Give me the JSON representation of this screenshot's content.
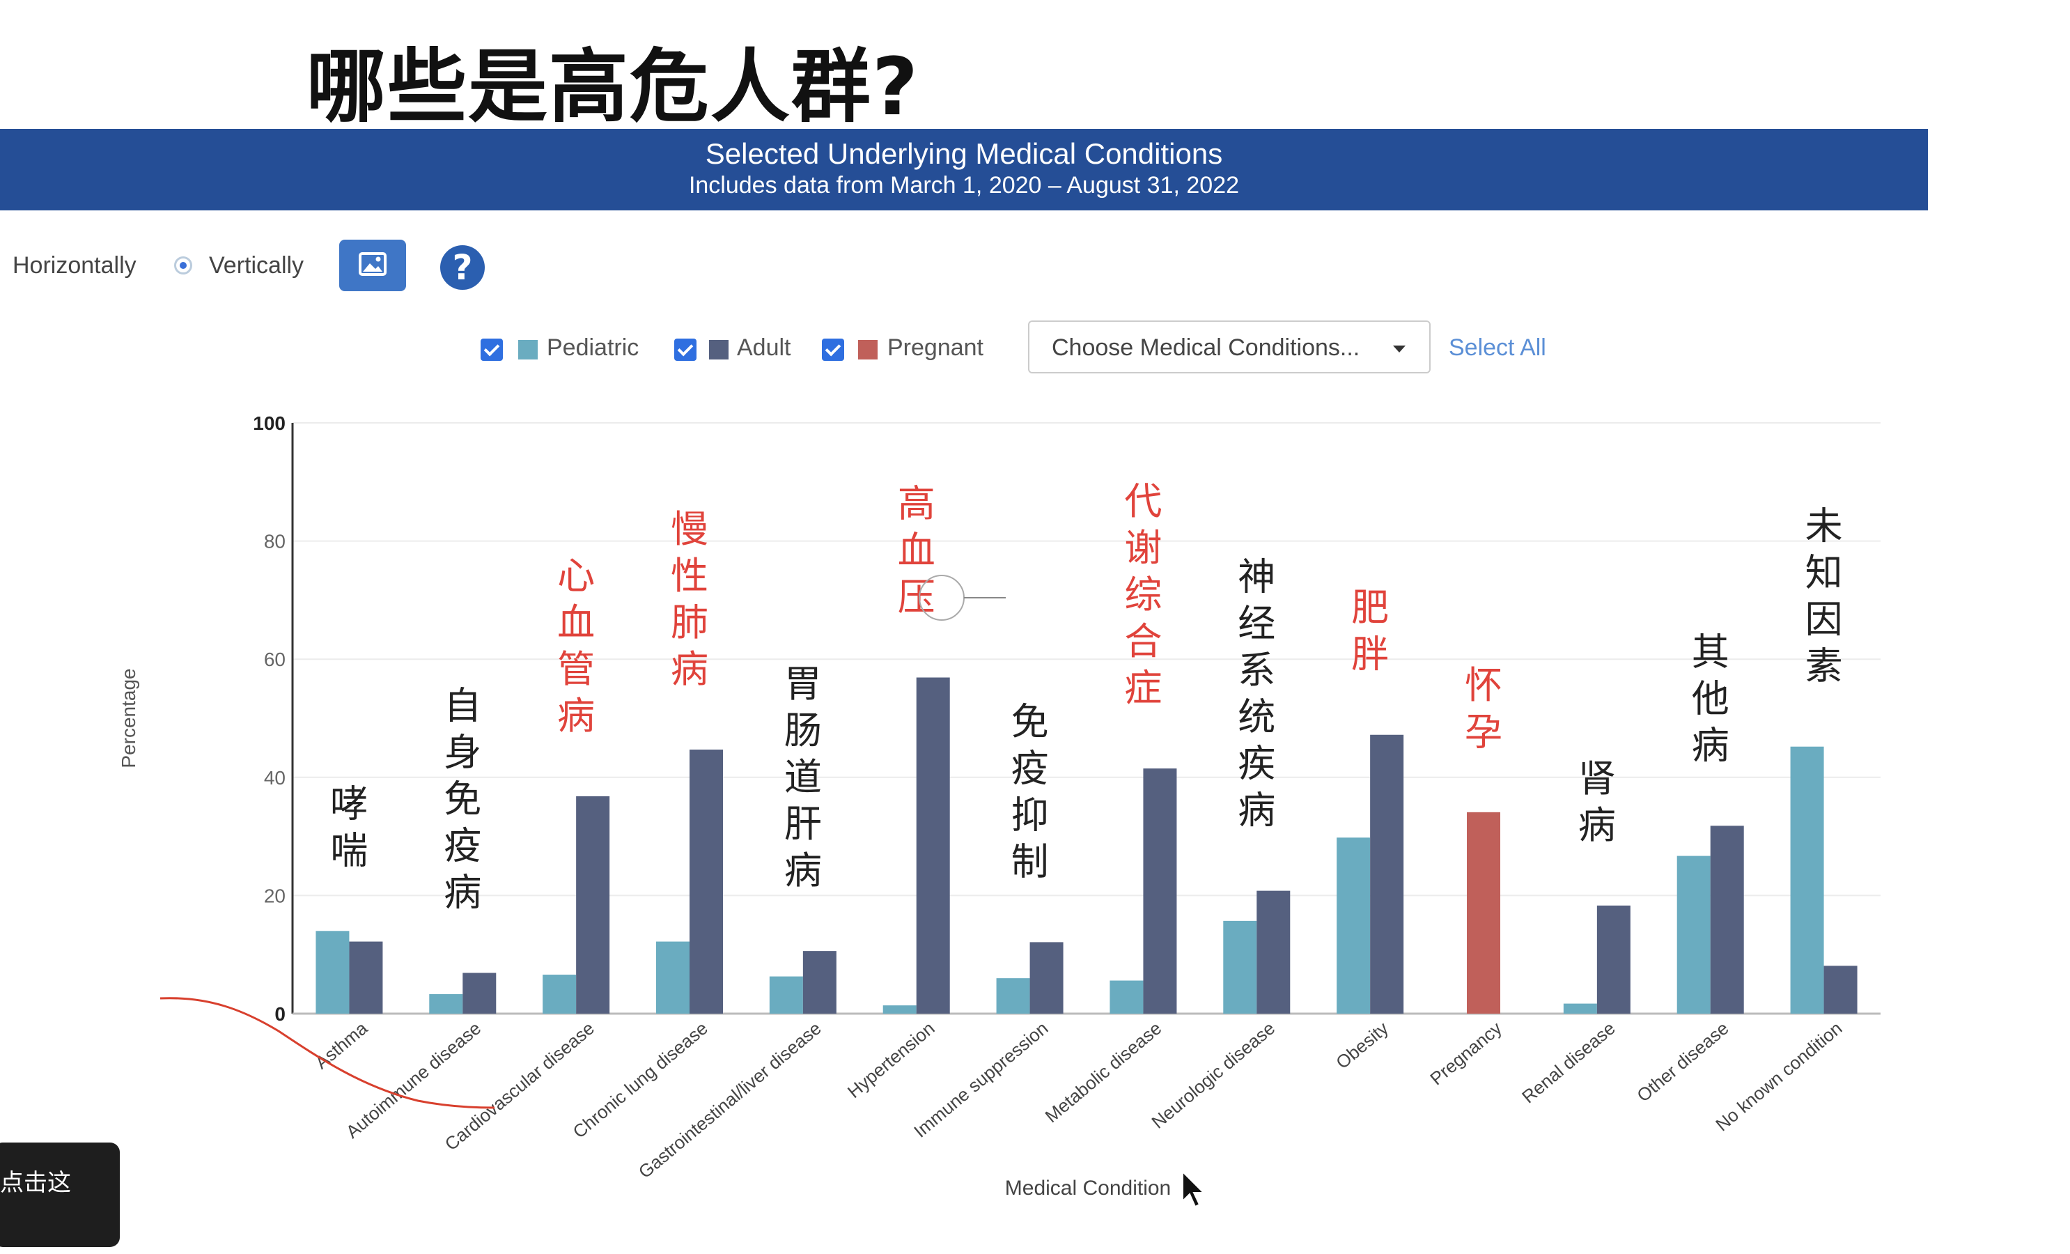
{
  "slide_title": "哪些是高危人群?",
  "banner": {
    "title": "Selected Underlying Medical Conditions",
    "subtitle": "Includes data from March 1, 2020 – August 31, 2022"
  },
  "controls": {
    "horizontal_label": "Horizontally",
    "vertical_label": "Vertically",
    "selected_orientation": "Vertically",
    "image_icon": "image-icon",
    "help_icon": "question-icon",
    "help_glyph": "?"
  },
  "legend": {
    "items": [
      {
        "label": "Pediatric",
        "color": "#6aacc0",
        "checked": true
      },
      {
        "label": "Adult",
        "color": "#55607f",
        "checked": true
      },
      {
        "label": "Pregnant",
        "color": "#c0605a",
        "checked": true
      }
    ],
    "dropdown_label": "Choose Medical Conditions...",
    "select_all_label": "Select All"
  },
  "chart_data": {
    "type": "bar",
    "xlabel": "Medical Condition",
    "ylabel": "Percentage",
    "ylim": [
      0,
      100
    ],
    "yticks": [
      0,
      20,
      40,
      60,
      80,
      100
    ],
    "grid": true,
    "categories": [
      "Asthma",
      "Autoimmune disease",
      "Cardiovascular disease",
      "Chronic lung disease",
      "Gastrointestinal/liver disease",
      "Hypertension",
      "Immune suppression",
      "Metabolic disease",
      "Neurologic disease",
      "Obesity",
      "Pregnancy",
      "Renal disease",
      "Other disease",
      "No known condition"
    ],
    "series": [
      {
        "name": "Pediatric",
        "color": "#6aacc0",
        "values": [
          14,
          3.3,
          6.6,
          12.2,
          6.3,
          1.4,
          6,
          5.6,
          15.7,
          29.8,
          null,
          1.7,
          26.7,
          45.2
        ]
      },
      {
        "name": "Adult",
        "color": "#55607f",
        "values": [
          12.2,
          6.9,
          36.8,
          44.7,
          10.6,
          56.9,
          12.1,
          41.5,
          20.8,
          47.2,
          null,
          18.3,
          31.8,
          8.1
        ]
      },
      {
        "name": "Pregnant",
        "color": "#c0605a",
        "values": [
          null,
          null,
          null,
          null,
          null,
          null,
          null,
          null,
          null,
          null,
          34.1,
          null,
          null,
          null
        ]
      }
    ],
    "annotations": [
      {
        "text": "哮喘",
        "color": "#222222"
      },
      {
        "text": "自身免疫病",
        "color": "#222222"
      },
      {
        "text": "心血管病",
        "color": "#e0433b"
      },
      {
        "text": "慢性肺病",
        "color": "#e0433b"
      },
      {
        "text": "胃肠道肝病",
        "color": "#222222"
      },
      {
        "text": "高血压",
        "color": "#e0433b"
      },
      {
        "text": "免疫抑制",
        "color": "#222222"
      },
      {
        "text": "代谢综合症",
        "color": "#e0433b"
      },
      {
        "text": "神经系统疾病",
        "color": "#222222"
      },
      {
        "text": "肥胖",
        "color": "#e0433b"
      },
      {
        "text": "怀孕",
        "color": "#e0433b"
      },
      {
        "text": "肾病",
        "color": "#222222"
      },
      {
        "text": "其他病",
        "color": "#222222"
      },
      {
        "text": "未知因素",
        "color": "#222222"
      }
    ]
  },
  "tooltip_text": "点击这",
  "cursor_icon": "mouse-pointer-icon"
}
